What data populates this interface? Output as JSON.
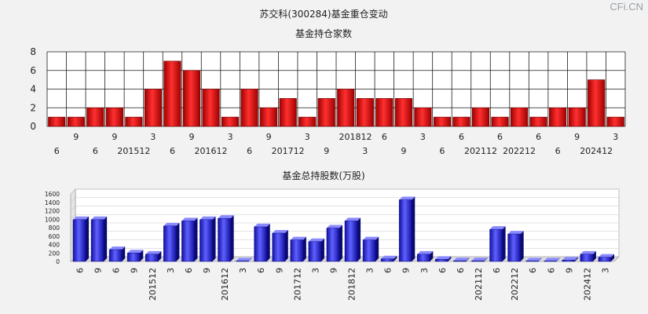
{
  "watermark": "CFi.CN",
  "chart_data": [
    {
      "type": "bar",
      "title": "苏交科(300284)基金重仓变动",
      "subtitle": "基金持仓家数",
      "color": "#dd1111",
      "ylim": [
        0,
        8
      ],
      "yticks": [
        0,
        2,
        4,
        6,
        8
      ],
      "grid": true,
      "values": [
        1,
        1,
        2,
        2,
        1,
        4,
        7,
        6,
        4,
        1,
        4,
        2,
        3,
        1,
        3,
        4,
        3,
        3,
        3,
        2,
        1,
        1,
        2,
        1,
        2,
        1,
        2,
        2,
        5,
        1
      ],
      "xlabels_upper": [
        {
          "i": 1,
          "t": "9"
        },
        {
          "i": 3,
          "t": "9"
        },
        {
          "i": 5,
          "t": "3"
        },
        {
          "i": 7,
          "t": "9"
        },
        {
          "i": 9,
          "t": "3"
        },
        {
          "i": 11,
          "t": "9"
        },
        {
          "i": 13,
          "t": "3"
        },
        {
          "i": 15.5,
          "t": "201812"
        },
        {
          "i": 17,
          "t": "6"
        },
        {
          "i": 19,
          "t": "3"
        },
        {
          "i": 21,
          "t": "6"
        },
        {
          "i": 23,
          "t": "6"
        },
        {
          "i": 25,
          "t": "6"
        },
        {
          "i": 27,
          "t": "9"
        },
        {
          "i": 29,
          "t": "3"
        }
      ],
      "xlabels_lower": [
        {
          "i": 0,
          "t": "6"
        },
        {
          "i": 2,
          "t": "6"
        },
        {
          "i": 4,
          "t": "201512"
        },
        {
          "i": 6,
          "t": "6"
        },
        {
          "i": 8,
          "t": "201612"
        },
        {
          "i": 10,
          "t": "6"
        },
        {
          "i": 12,
          "t": "201712"
        },
        {
          "i": 14,
          "t": "9"
        },
        {
          "i": 16,
          "t": "3"
        },
        {
          "i": 18,
          "t": "9"
        },
        {
          "i": 20,
          "t": "6"
        },
        {
          "i": 22,
          "t": "202112"
        },
        {
          "i": 24,
          "t": "202212"
        },
        {
          "i": 26,
          "t": "6"
        },
        {
          "i": 28,
          "t": "202412"
        }
      ]
    },
    {
      "type": "bar",
      "title": "基金总持股数(万股)",
      "color": "#2222dd",
      "ylim": [
        0,
        1600
      ],
      "yticks": [
        0,
        200,
        400,
        600,
        800,
        1000,
        1200,
        1400,
        1600
      ],
      "grid": true,
      "values": [
        990,
        990,
        280,
        200,
        170,
        840,
        960,
        990,
        1020,
        10,
        820,
        670,
        510,
        470,
        790,
        960,
        510,
        60,
        1460,
        170,
        50,
        15,
        15,
        760,
        650,
        10,
        10,
        30,
        170,
        100
      ],
      "xlabels": [
        "6",
        "9",
        "6",
        "9",
        "201512",
        "3",
        "6",
        "9",
        "201612",
        "3",
        "6",
        "9",
        "201712",
        "3",
        "9",
        "201812",
        "3",
        "6",
        "9",
        "3",
        "6",
        "6",
        "202112",
        "6",
        "202212",
        "6",
        "6",
        "9",
        "202412",
        "3"
      ]
    }
  ]
}
